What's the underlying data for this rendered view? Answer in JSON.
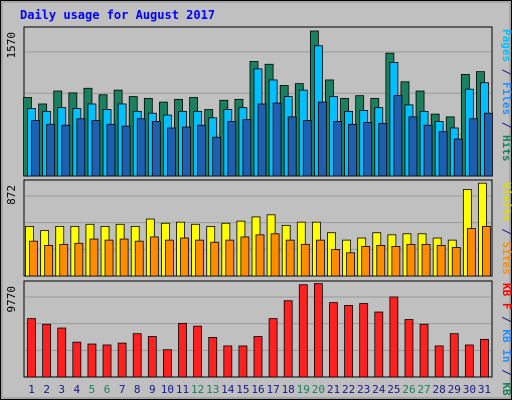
{
  "chart_data": {
    "title": "Daily usage for August 2017",
    "categories": [
      "1",
      "2",
      "3",
      "4",
      "5",
      "6",
      "7",
      "8",
      "9",
      "10",
      "11",
      "12",
      "13",
      "14",
      "15",
      "16",
      "17",
      "18",
      "19",
      "20",
      "21",
      "22",
      "23",
      "24",
      "25",
      "26",
      "27",
      "28",
      "29",
      "30",
      "31"
    ],
    "weekend_days": [
      "5",
      "6",
      "12",
      "13",
      "19",
      "20",
      "26",
      "27"
    ],
    "panels": [
      {
        "type": "bar",
        "max_label": "1570",
        "ymax": 1570,
        "right_label_parts": [
          {
            "text": "Pages",
            "color": "#00bfff"
          },
          {
            "text": " / ",
            "color": "#1a1a8c"
          },
          {
            "text": "Files",
            "color": "#1e90ff"
          },
          {
            "text": " / ",
            "color": "#1a1a8c"
          },
          {
            "text": "Hits",
            "color": "#1a8060"
          }
        ],
        "series": [
          {
            "name": "Hits",
            "color": "#1a8060",
            "values": [
              850,
              780,
              920,
              900,
              950,
              880,
              930,
              860,
              840,
              800,
              830,
              850,
              720,
              820,
              830,
              1240,
              1210,
              980,
              1000,
              1570,
              1040,
              840,
              870,
              840,
              1330,
              1020,
              920,
              670,
              640,
              1100,
              1130
            ]
          },
          {
            "name": "Files",
            "color": "#00c0ff",
            "values": [
              730,
              700,
              740,
              730,
              780,
              720,
              780,
              700,
              680,
              660,
              700,
              700,
              630,
              720,
              740,
              1160,
              1040,
              860,
              930,
              1410,
              860,
              700,
              710,
              740,
              1230,
              770,
              700,
              590,
              520,
              940,
              1010
            ]
          },
          {
            "name": "Pages",
            "color": "#1e5fb0",
            "values": [
              600,
              560,
              550,
              620,
              600,
              560,
              540,
              620,
              590,
              520,
              530,
              550,
              420,
              590,
              610,
              780,
              790,
              640,
              600,
              800,
              590,
              560,
              580,
              570,
              870,
              640,
              550,
              480,
              400,
              620,
              680
            ]
          }
        ]
      },
      {
        "type": "bar",
        "max_label": "872",
        "ymax": 872,
        "right_label_parts": [
          {
            "text": "Visits",
            "color": "#dddd00"
          },
          {
            "text": " / ",
            "color": "#1a1a8c"
          },
          {
            "text": "Sites",
            "color": "#ff8c00"
          }
        ],
        "series": [
          {
            "name": "Visits",
            "color": "#ffff00",
            "values": [
              470,
              430,
              470,
              470,
              490,
              470,
              490,
              470,
              540,
              500,
              510,
              490,
              470,
              500,
              520,
              560,
              580,
              480,
              510,
              510,
              410,
              340,
              360,
              410,
              390,
              400,
              400,
              360,
              340,
              820,
              880
            ]
          },
          {
            "name": "Sites",
            "color": "#ff8c00",
            "values": [
              330,
              290,
              300,
              310,
              350,
              340,
              350,
              330,
              370,
              340,
              360,
              340,
              320,
              340,
              370,
              390,
              400,
              340,
              300,
              340,
              250,
              220,
              280,
              290,
              280,
              300,
              300,
              290,
              270,
              450,
              470
            ]
          }
        ]
      },
      {
        "type": "bar",
        "max_label": "9770",
        "ymax": 9770,
        "right_label_parts": [
          {
            "text": "KB F",
            "color": "#ff0000"
          },
          {
            "text": " / ",
            "color": "#1a1a8c"
          },
          {
            "text": "KB In",
            "color": "#1e90ff"
          },
          {
            "text": " / ",
            "color": "#1a1a8c"
          },
          {
            "text": "KB Out",
            "color": "#1a8060"
          }
        ],
        "series": [
          {
            "name": "KB F",
            "color": "#ff2020",
            "values": [
              6200,
              5600,
              5200,
              3700,
              3500,
              3400,
              3600,
              4600,
              4300,
              2900,
              5700,
              5400,
              4200,
              3300,
              3300,
              4300,
              6200,
              8100,
              9800,
              9920,
              7900,
              7600,
              7800,
              6900,
              8500,
              6100,
              5600,
              3300,
              4600,
              3400,
              4000
            ]
          }
        ]
      }
    ]
  },
  "colors": {
    "background": "#ffffff",
    "frame": "#c0c0c0",
    "plot_bg": "#c0c0c0",
    "title": "#0000ff",
    "grid": "#9a9a9a",
    "weekday_label": "#1a1a8c",
    "weekend_label": "#1a8060"
  }
}
